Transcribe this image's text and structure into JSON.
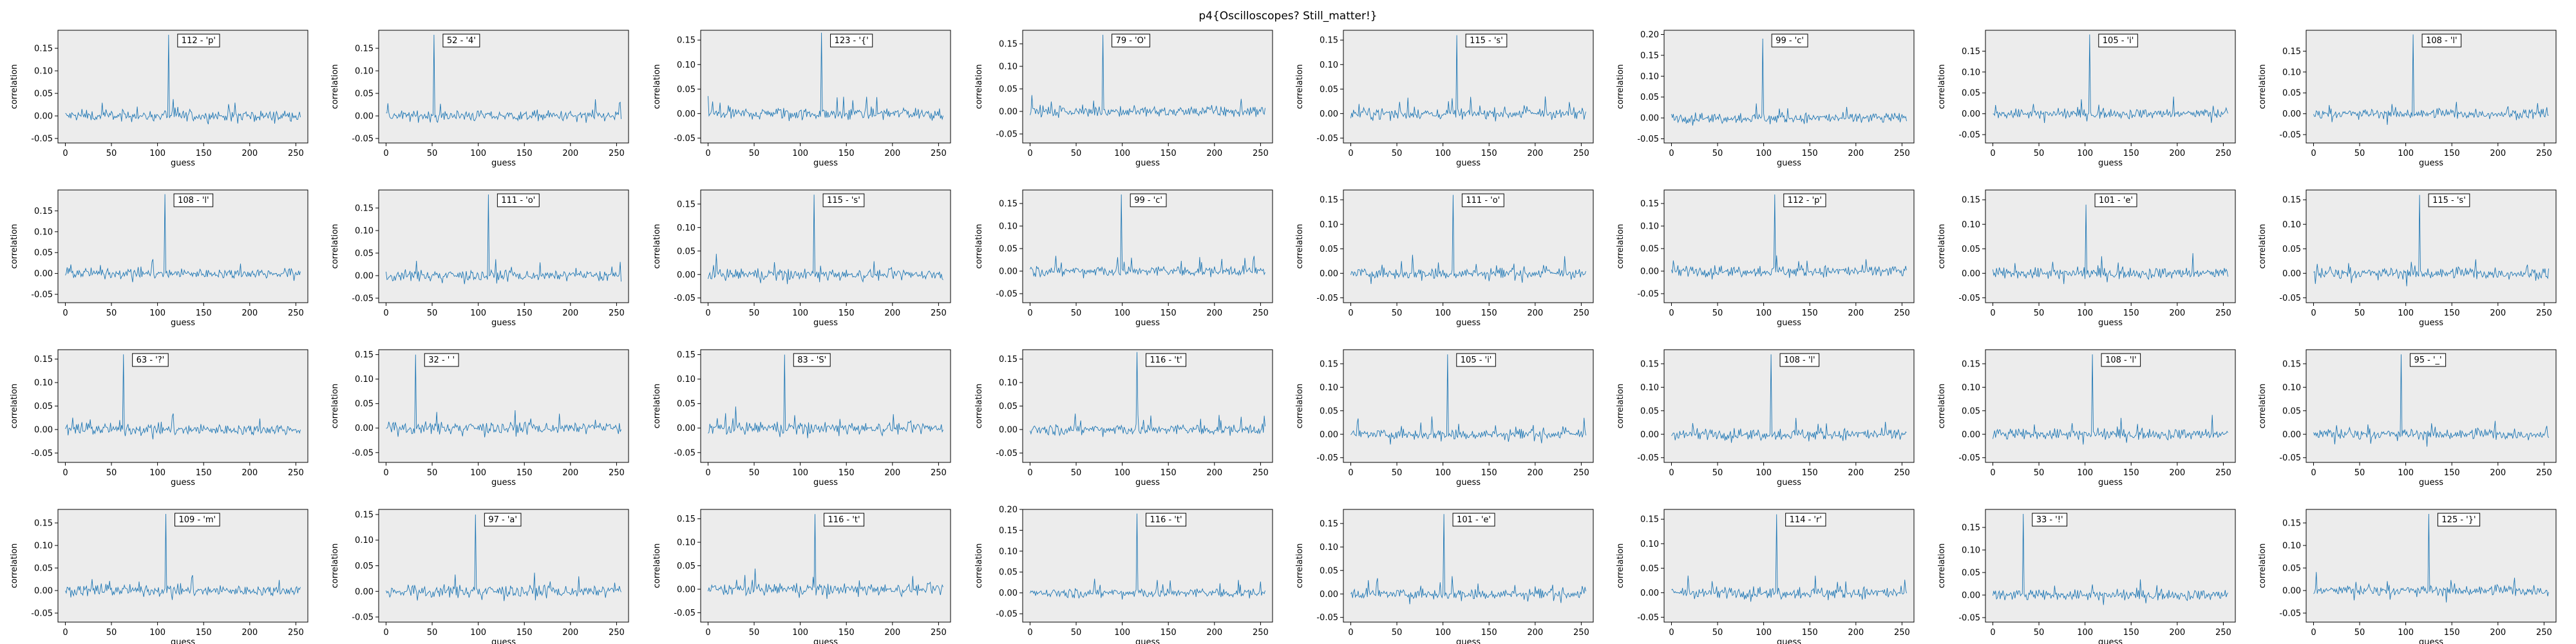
{
  "title": "p4{Oscilloscopes? Still_matter!}",
  "chart_data": {
    "type": "line",
    "xlabel": "guess",
    "ylabel": "correlation",
    "xlim": [
      -8,
      263
    ],
    "xticks": [
      0,
      50,
      100,
      150,
      200,
      250
    ],
    "grid": false,
    "layout": "4x8 subplots",
    "line_color": "#1f77b4",
    "panel_bg": "#ececec",
    "panels": [
      {
        "label": "112 - 'p'",
        "peak_x": 112,
        "peak_y": 0.18,
        "ylim": [
          -0.06,
          0.19
        ],
        "yticks": [
          -0.05,
          0.0,
          0.05,
          0.1,
          0.15
        ]
      },
      {
        "label": "52 - '4'",
        "peak_x": 52,
        "peak_y": 0.18,
        "ylim": [
          -0.06,
          0.19
        ],
        "yticks": [
          -0.05,
          0.0,
          0.05,
          0.1,
          0.15
        ]
      },
      {
        "label": "123 - '{'",
        "peak_x": 123,
        "peak_y": 0.165,
        "ylim": [
          -0.06,
          0.17
        ],
        "yticks": [
          -0.05,
          0.0,
          0.05,
          0.1,
          0.15
        ]
      },
      {
        "label": "79 - 'O'",
        "peak_x": 79,
        "peak_y": 0.17,
        "ylim": [
          -0.07,
          0.18
        ],
        "yticks": [
          -0.05,
          0.0,
          0.05,
          0.1,
          0.15
        ]
      },
      {
        "label": "115 - 's'",
        "peak_x": 115,
        "peak_y": 0.16,
        "ylim": [
          -0.06,
          0.17
        ],
        "yticks": [
          -0.05,
          0.0,
          0.05,
          0.1,
          0.15
        ]
      },
      {
        "label": "99 - 'c'",
        "peak_x": 99,
        "peak_y": 0.19,
        "ylim": [
          -0.06,
          0.21
        ],
        "yticks": [
          -0.05,
          0.0,
          0.05,
          0.1,
          0.15,
          0.2
        ]
      },
      {
        "label": "105 - 'i'",
        "peak_x": 105,
        "peak_y": 0.19,
        "ylim": [
          -0.07,
          0.2
        ],
        "yticks": [
          -0.05,
          0.0,
          0.05,
          0.1,
          0.15
        ]
      },
      {
        "label": "108 - 'l'",
        "peak_x": 108,
        "peak_y": 0.19,
        "ylim": [
          -0.07,
          0.2
        ],
        "yticks": [
          -0.05,
          0.0,
          0.05,
          0.1,
          0.15
        ]
      },
      {
        "label": "108 - 'l'",
        "peak_x": 108,
        "peak_y": 0.19,
        "ylim": [
          -0.07,
          0.2
        ],
        "yticks": [
          -0.05,
          0.0,
          0.05,
          0.1,
          0.15
        ]
      },
      {
        "label": "111 - 'o'",
        "peak_x": 111,
        "peak_y": 0.18,
        "ylim": [
          -0.06,
          0.19
        ],
        "yticks": [
          -0.05,
          0.0,
          0.05,
          0.1,
          0.15
        ]
      },
      {
        "label": "115 - 's'",
        "peak_x": 115,
        "peak_y": 0.17,
        "ylim": [
          -0.06,
          0.18
        ],
        "yticks": [
          -0.05,
          0.0,
          0.05,
          0.1,
          0.15
        ]
      },
      {
        "label": "99 - 'c'",
        "peak_x": 99,
        "peak_y": 0.17,
        "ylim": [
          -0.07,
          0.18
        ],
        "yticks": [
          -0.05,
          0.0,
          0.05,
          0.1,
          0.15
        ]
      },
      {
        "label": "111 - 'o'",
        "peak_x": 111,
        "peak_y": 0.16,
        "ylim": [
          -0.06,
          0.17
        ],
        "yticks": [
          -0.05,
          0.0,
          0.05,
          0.1,
          0.15
        ]
      },
      {
        "label": "112 - 'p'",
        "peak_x": 112,
        "peak_y": 0.17,
        "ylim": [
          -0.07,
          0.18
        ],
        "yticks": [
          -0.05,
          0.0,
          0.05,
          0.1,
          0.15
        ]
      },
      {
        "label": "101 - 'e'",
        "peak_x": 101,
        "peak_y": 0.14,
        "ylim": [
          -0.06,
          0.17
        ],
        "yticks": [
          -0.05,
          0.0,
          0.05,
          0.1,
          0.15
        ]
      },
      {
        "label": "115 - 's'",
        "peak_x": 115,
        "peak_y": 0.16,
        "ylim": [
          -0.06,
          0.17
        ],
        "yticks": [
          -0.05,
          0.0,
          0.05,
          0.1,
          0.15
        ]
      },
      {
        "label": "63 - '?'",
        "peak_x": 63,
        "peak_y": 0.16,
        "ylim": [
          -0.07,
          0.17
        ],
        "yticks": [
          -0.05,
          0.0,
          0.05,
          0.1,
          0.15
        ]
      },
      {
        "label": "32 - ' '",
        "peak_x": 32,
        "peak_y": 0.15,
        "ylim": [
          -0.07,
          0.16
        ],
        "yticks": [
          -0.05,
          0.0,
          0.05,
          0.1,
          0.15
        ]
      },
      {
        "label": "83 - 'S'",
        "peak_x": 83,
        "peak_y": 0.15,
        "ylim": [
          -0.07,
          0.16
        ],
        "yticks": [
          -0.05,
          0.0,
          0.05,
          0.1,
          0.15
        ]
      },
      {
        "label": "116 - 't'",
        "peak_x": 116,
        "peak_y": 0.165,
        "ylim": [
          -0.07,
          0.17
        ],
        "yticks": [
          -0.05,
          0.0,
          0.05,
          0.1,
          0.15
        ]
      },
      {
        "label": "105 - 'i'",
        "peak_x": 105,
        "peak_y": 0.17,
        "ylim": [
          -0.06,
          0.18
        ],
        "yticks": [
          -0.05,
          0.0,
          0.05,
          0.1,
          0.15
        ]
      },
      {
        "label": "108 - 'l'",
        "peak_x": 108,
        "peak_y": 0.17,
        "ylim": [
          -0.06,
          0.18
        ],
        "yticks": [
          -0.05,
          0.0,
          0.05,
          0.1,
          0.15
        ]
      },
      {
        "label": "108 - 'l'",
        "peak_x": 108,
        "peak_y": 0.17,
        "ylim": [
          -0.06,
          0.18
        ],
        "yticks": [
          -0.05,
          0.0,
          0.05,
          0.1,
          0.15
        ]
      },
      {
        "label": "95 - '_'",
        "peak_x": 95,
        "peak_y": 0.17,
        "ylim": [
          -0.06,
          0.18
        ],
        "yticks": [
          -0.05,
          0.0,
          0.05,
          0.1,
          0.15
        ]
      },
      {
        "label": "109 - 'm'",
        "peak_x": 109,
        "peak_y": 0.17,
        "ylim": [
          -0.07,
          0.18
        ],
        "yticks": [
          -0.05,
          0.0,
          0.05,
          0.1,
          0.15
        ]
      },
      {
        "label": "97 - 'a'",
        "peak_x": 97,
        "peak_y": 0.15,
        "ylim": [
          -0.06,
          0.16
        ],
        "yticks": [
          -0.05,
          0.0,
          0.05,
          0.1,
          0.15
        ]
      },
      {
        "label": "116 - 't'",
        "peak_x": 116,
        "peak_y": 0.16,
        "ylim": [
          -0.07,
          0.17
        ],
        "yticks": [
          -0.05,
          0.0,
          0.05,
          0.1,
          0.15
        ]
      },
      {
        "label": "116 - 't'",
        "peak_x": 116,
        "peak_y": 0.19,
        "ylim": [
          -0.07,
          0.2
        ],
        "yticks": [
          -0.05,
          0.0,
          0.05,
          0.1,
          0.15,
          0.2
        ]
      },
      {
        "label": "101 - 'e'",
        "peak_x": 101,
        "peak_y": 0.17,
        "ylim": [
          -0.06,
          0.18
        ],
        "yticks": [
          -0.05,
          0.0,
          0.05,
          0.1,
          0.15
        ]
      },
      {
        "label": "114 - 'r'",
        "peak_x": 114,
        "peak_y": 0.16,
        "ylim": [
          -0.06,
          0.17
        ],
        "yticks": [
          -0.05,
          0.0,
          0.05,
          0.1,
          0.15
        ]
      },
      {
        "label": "33 - '!'",
        "peak_x": 33,
        "peak_y": 0.18,
        "ylim": [
          -0.06,
          0.19
        ],
        "yticks": [
          -0.05,
          0.0,
          0.05,
          0.1,
          0.15
        ]
      },
      {
        "label": "125 - '}'",
        "peak_x": 125,
        "peak_y": 0.17,
        "ylim": [
          -0.07,
          0.18
        ],
        "yticks": [
          -0.05,
          0.0,
          0.05,
          0.1,
          0.15
        ]
      }
    ]
  }
}
